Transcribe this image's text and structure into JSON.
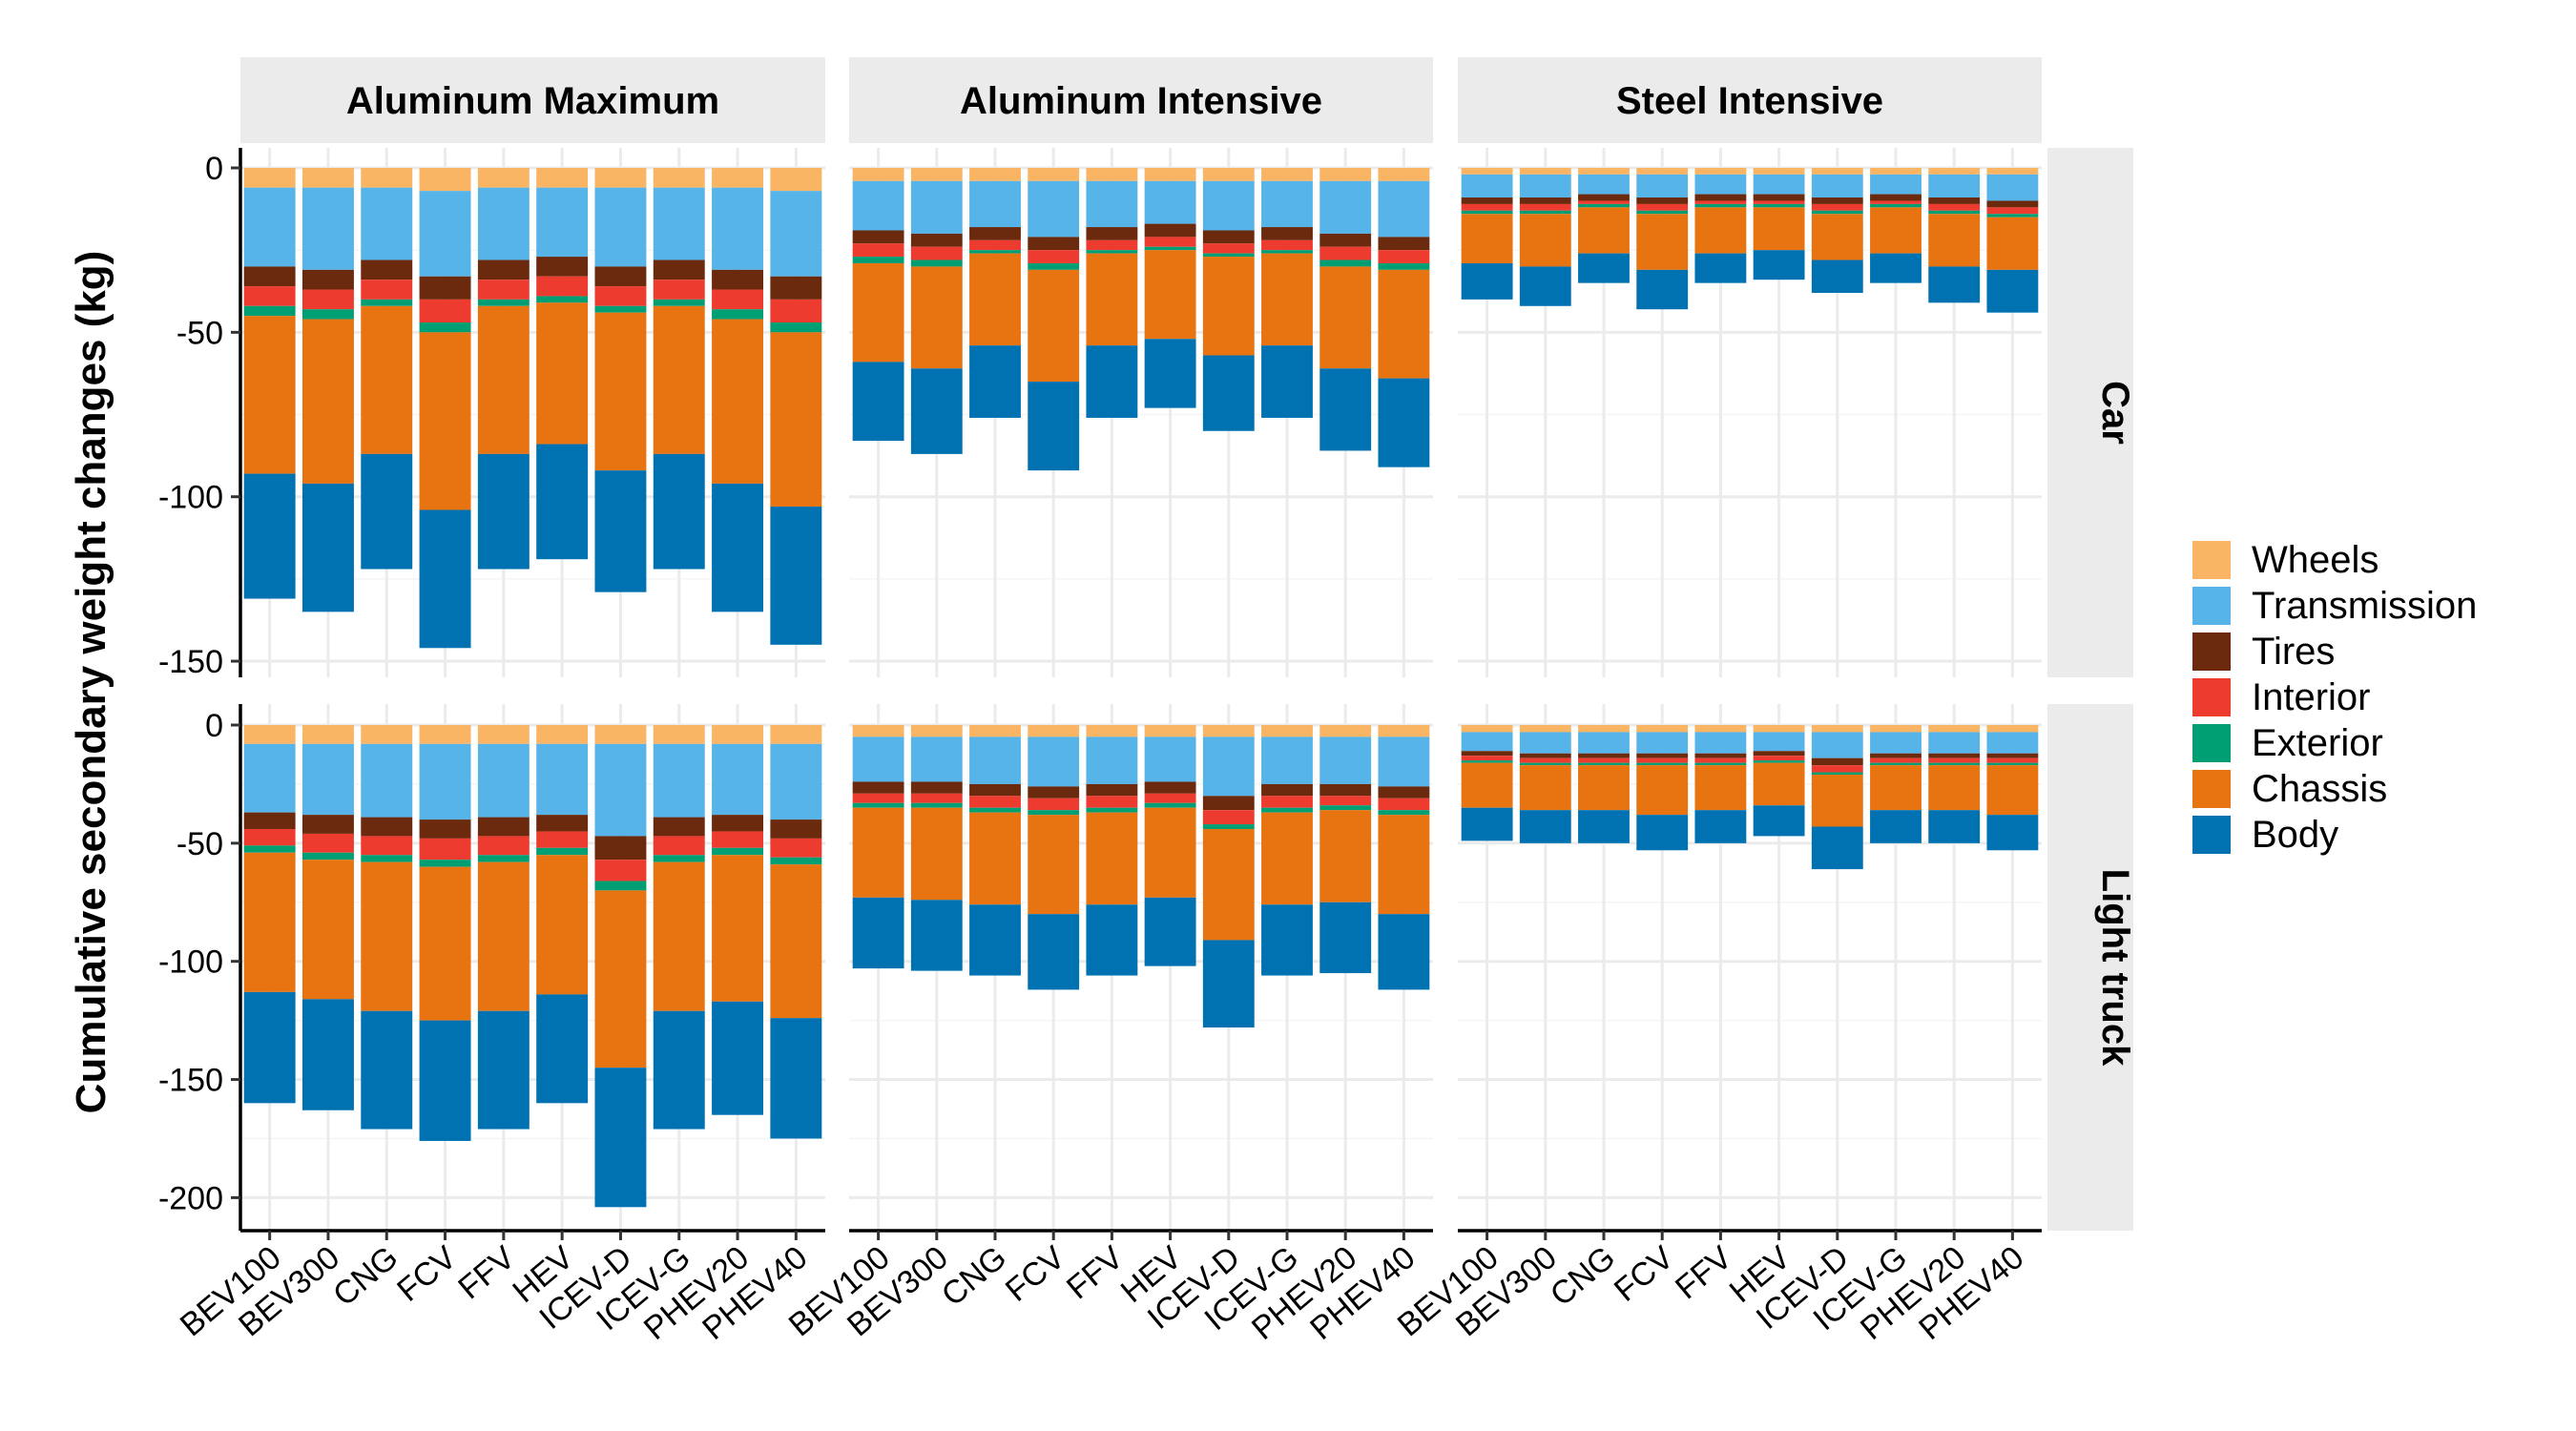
{
  "chart_data": {
    "type": "bar",
    "stacked": true,
    "orientation": "vertical",
    "ylabel": "Cumulative secondary weight changes (kg)",
    "categories": [
      "BEV100",
      "BEV300",
      "CNG",
      "FCV",
      "FFV",
      "HEV",
      "ICEV-D",
      "ICEV-G",
      "PHEV20",
      "PHEV40"
    ],
    "scenarios": [
      "Aluminum Maximum",
      "Aluminum Intensive",
      "Steel Intensive"
    ],
    "vehicle_types": [
      "Car",
      "Light truck"
    ],
    "components": [
      "Wheels",
      "Transmission",
      "Tires",
      "Interior",
      "Exterior",
      "Chassis",
      "Body"
    ],
    "colors": {
      "Wheels": "#F9B464",
      "Transmission": "#56B4E9",
      "Tires": "#6B2A0D",
      "Interior": "#EE3B2F",
      "Exterior": "#009E73",
      "Chassis": "#E87311",
      "Body": "#0072B2"
    },
    "legend_position": "right",
    "grid": true,
    "ylim": {
      "Car": [
        -150,
        0
      ],
      "Light truck": [
        -200,
        0
      ]
    },
    "yticks": {
      "Car": [
        0,
        -50,
        -100,
        -150
      ],
      "Light truck": [
        0,
        -50,
        -100,
        -150,
        -200
      ]
    },
    "panels": [
      {
        "scenario": "Aluminum Maximum",
        "vehicle_type": "Car",
        "series": [
          {
            "name": "Wheels",
            "values": [
              -6,
              -6,
              -6,
              -7,
              -6,
              -6,
              -6,
              -6,
              -6,
              -7
            ]
          },
          {
            "name": "Transmission",
            "values": [
              -24,
              -25,
              -22,
              -26,
              -22,
              -21,
              -24,
              -22,
              -25,
              -26
            ]
          },
          {
            "name": "Tires",
            "values": [
              -6,
              -6,
              -6,
              -7,
              -6,
              -6,
              -6,
              -6,
              -6,
              -7
            ]
          },
          {
            "name": "Interior",
            "values": [
              -6,
              -6,
              -6,
              -7,
              -6,
              -6,
              -6,
              -6,
              -6,
              -7
            ]
          },
          {
            "name": "Exterior",
            "values": [
              -3,
              -3,
              -2,
              -3,
              -2,
              -2,
              -2,
              -2,
              -3,
              -3
            ]
          },
          {
            "name": "Chassis",
            "values": [
              -48,
              -50,
              -45,
              -54,
              -45,
              -43,
              -48,
              -45,
              -50,
              -53
            ]
          },
          {
            "name": "Body",
            "values": [
              -38,
              -39,
              -35,
              -42,
              -35,
              -35,
              -37,
              -35,
              -39,
              -42
            ]
          }
        ]
      },
      {
        "scenario": "Aluminum Intensive",
        "vehicle_type": "Car",
        "series": [
          {
            "name": "Wheels",
            "values": [
              -4,
              -4,
              -4,
              -4,
              -4,
              -4,
              -4,
              -4,
              -4,
              -4
            ]
          },
          {
            "name": "Transmission",
            "values": [
              -15,
              -16,
              -14,
              -17,
              -14,
              -13,
              -15,
              -14,
              -16,
              -17
            ]
          },
          {
            "name": "Tires",
            "values": [
              -4,
              -4,
              -4,
              -4,
              -4,
              -4,
              -4,
              -4,
              -4,
              -4
            ]
          },
          {
            "name": "Interior",
            "values": [
              -4,
              -4,
              -3,
              -4,
              -3,
              -3,
              -3,
              -3,
              -4,
              -4
            ]
          },
          {
            "name": "Exterior",
            "values": [
              -2,
              -2,
              -1,
              -2,
              -1,
              -1,
              -1,
              -1,
              -2,
              -2
            ]
          },
          {
            "name": "Chassis",
            "values": [
              -30,
              -31,
              -28,
              -34,
              -28,
              -27,
              -30,
              -28,
              -31,
              -33
            ]
          },
          {
            "name": "Body",
            "values": [
              -24,
              -26,
              -22,
              -27,
              -22,
              -21,
              -23,
              -22,
              -25,
              -27
            ]
          }
        ]
      },
      {
        "scenario": "Steel Intensive",
        "vehicle_type": "Car",
        "series": [
          {
            "name": "Wheels",
            "values": [
              -2,
              -2,
              -2,
              -2,
              -2,
              -2,
              -2,
              -2,
              -2,
              -2
            ]
          },
          {
            "name": "Transmission",
            "values": [
              -7,
              -7,
              -6,
              -7,
              -6,
              -6,
              -7,
              -6,
              -7,
              -8
            ]
          },
          {
            "name": "Tires",
            "values": [
              -2,
              -2,
              -2,
              -2,
              -2,
              -2,
              -2,
              -2,
              -2,
              -2
            ]
          },
          {
            "name": "Interior",
            "values": [
              -2,
              -2,
              -1,
              -2,
              -1,
              -1,
              -2,
              -1,
              -2,
              -2
            ]
          },
          {
            "name": "Exterior",
            "values": [
              -1,
              -1,
              -1,
              -1,
              -1,
              -1,
              -1,
              -1,
              -1,
              -1
            ]
          },
          {
            "name": "Chassis",
            "values": [
              -15,
              -16,
              -14,
              -17,
              -14,
              -13,
              -14,
              -14,
              -16,
              -16
            ]
          },
          {
            "name": "Body",
            "values": [
              -11,
              -12,
              -9,
              -12,
              -9,
              -9,
              -10,
              -9,
              -11,
              -13
            ]
          }
        ]
      },
      {
        "scenario": "Aluminum Maximum",
        "vehicle_type": "Light truck",
        "series": [
          {
            "name": "Wheels",
            "values": [
              -8,
              -8,
              -8,
              -8,
              -8,
              -8,
              -8,
              -8,
              -8,
              -8
            ]
          },
          {
            "name": "Transmission",
            "values": [
              -29,
              -30,
              -31,
              -32,
              -31,
              -30,
              -39,
              -31,
              -30,
              -32
            ]
          },
          {
            "name": "Tires",
            "values": [
              -7,
              -8,
              -8,
              -8,
              -8,
              -7,
              -10,
              -8,
              -7,
              -8
            ]
          },
          {
            "name": "Interior",
            "values": [
              -7,
              -8,
              -8,
              -9,
              -8,
              -7,
              -9,
              -8,
              -7,
              -8
            ]
          },
          {
            "name": "Exterior",
            "values": [
              -3,
              -3,
              -3,
              -3,
              -3,
              -3,
              -4,
              -3,
              -3,
              -3
            ]
          },
          {
            "name": "Chassis",
            "values": [
              -59,
              -59,
              -63,
              -65,
              -63,
              -59,
              -75,
              -63,
              -62,
              -65
            ]
          },
          {
            "name": "Body",
            "values": [
              -47,
              -47,
              -50,
              -51,
              -50,
              -46,
              -59,
              -50,
              -48,
              -51
            ]
          }
        ]
      },
      {
        "scenario": "Aluminum Intensive",
        "vehicle_type": "Light truck",
        "series": [
          {
            "name": "Wheels",
            "values": [
              -5,
              -5,
              -5,
              -5,
              -5,
              -5,
              -5,
              -5,
              -5,
              -5
            ]
          },
          {
            "name": "Transmission",
            "values": [
              -19,
              -19,
              -20,
              -21,
              -20,
              -19,
              -25,
              -20,
              -20,
              -21
            ]
          },
          {
            "name": "Tires",
            "values": [
              -5,
              -5,
              -5,
              -5,
              -5,
              -5,
              -6,
              -5,
              -5,
              -5
            ]
          },
          {
            "name": "Interior",
            "values": [
              -4,
              -4,
              -5,
              -5,
              -5,
              -4,
              -6,
              -5,
              -4,
              -5
            ]
          },
          {
            "name": "Exterior",
            "values": [
              -2,
              -2,
              -2,
              -2,
              -2,
              -2,
              -2,
              -2,
              -2,
              -2
            ]
          },
          {
            "name": "Chassis",
            "values": [
              -38,
              -39,
              -39,
              -42,
              -39,
              -38,
              -47,
              -39,
              -39,
              -42
            ]
          },
          {
            "name": "Body",
            "values": [
              -30,
              -30,
              -30,
              -32,
              -30,
              -29,
              -37,
              -30,
              -30,
              -32
            ]
          }
        ]
      },
      {
        "scenario": "Steel Intensive",
        "vehicle_type": "Light truck",
        "series": [
          {
            "name": "Wheels",
            "values": [
              -3,
              -3,
              -3,
              -3,
              -3,
              -3,
              -3,
              -3,
              -3,
              -3
            ]
          },
          {
            "name": "Transmission",
            "values": [
              -8,
              -9,
              -9,
              -9,
              -9,
              -8,
              -11,
              -9,
              -9,
              -9
            ]
          },
          {
            "name": "Tires",
            "values": [
              -2,
              -2,
              -2,
              -2,
              -2,
              -2,
              -3,
              -2,
              -2,
              -2
            ]
          },
          {
            "name": "Interior",
            "values": [
              -2,
              -2,
              -2,
              -2,
              -2,
              -2,
              -3,
              -2,
              -2,
              -2
            ]
          },
          {
            "name": "Exterior",
            "values": [
              -1,
              -1,
              -1,
              -1,
              -1,
              -1,
              -1,
              -1,
              -1,
              -1
            ]
          },
          {
            "name": "Chassis",
            "values": [
              -19,
              -19,
              -19,
              -21,
              -19,
              -18,
              -22,
              -19,
              -19,
              -21
            ]
          },
          {
            "name": "Body",
            "values": [
              -14,
              -14,
              -14,
              -15,
              -14,
              -13,
              -18,
              -14,
              -14,
              -15
            ]
          }
        ]
      }
    ]
  }
}
